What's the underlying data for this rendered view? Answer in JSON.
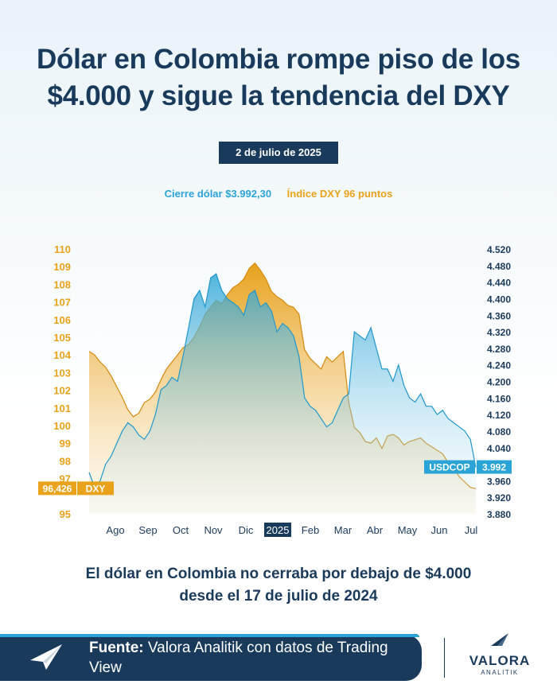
{
  "title_line1": "Dólar en Colombia rompe piso de los",
  "title_line2": "$4.000 y sigue la tendencia del DXY",
  "date": "2 de julio de 2025",
  "legend": {
    "usdcop": "Cierre dólar $3.992,30",
    "dxy": "Índice DXY 96 puntos"
  },
  "colors": {
    "navy": "#1a3a5c",
    "usdcop": "#2aa4d6",
    "dxy": "#e8a21b"
  },
  "chart_data": {
    "type": "area",
    "x_labels": [
      "Ago",
      "Sep",
      "Oct",
      "Nov",
      "Dic",
      "2025",
      "Feb",
      "Mar",
      "Abr",
      "May",
      "Jun",
      "Jul"
    ],
    "y_left": {
      "ticks": [
        110,
        109,
        108,
        107,
        106,
        105,
        104,
        103,
        102,
        101,
        100,
        99,
        98,
        97,
        95
      ],
      "range": [
        95,
        110
      ]
    },
    "y_right": {
      "ticks": [
        "4.520",
        "4.480",
        "4.440",
        "4.400",
        "4.360",
        "4.320",
        "4.280",
        "4.240",
        "4.200",
        "4.160",
        "4.120",
        "4.080",
        "4.040",
        "3.992",
        "3.960",
        "3.920",
        "3.880"
      ],
      "range": [
        3880,
        4520
      ]
    },
    "series": [
      {
        "name": "DXY",
        "axis": "left",
        "last_label": "96,426",
        "values": [
          104.2,
          104.0,
          103.6,
          103.3,
          102.8,
          102.2,
          101.6,
          100.9,
          100.5,
          100.7,
          101.3,
          101.5,
          101.9,
          102.6,
          103.2,
          103.6,
          104.0,
          104.4,
          104.6,
          105.0,
          105.6,
          106.3,
          106.7,
          107.1,
          106.9,
          107.4,
          107.8,
          108.0,
          108.3,
          108.9,
          109.2,
          108.8,
          108.3,
          107.6,
          107.3,
          107.1,
          106.8,
          106.7,
          106.3,
          104.3,
          103.8,
          103.5,
          103.2,
          103.9,
          103.6,
          103.9,
          104.2,
          101.3,
          99.9,
          99.6,
          99.1,
          99.0,
          99.3,
          98.7,
          99.4,
          99.5,
          99.3,
          98.9,
          99.1,
          99.2,
          99.3,
          99.0,
          98.8,
          98.6,
          98.4,
          97.9,
          97.6,
          97.1,
          96.8,
          96.5,
          96.426
        ]
      },
      {
        "name": "USDCOP",
        "axis": "right",
        "last_label": "3.992",
        "values": [
          3980,
          3945,
          3960,
          4000,
          4020,
          4050,
          4080,
          4100,
          4090,
          4070,
          4060,
          4080,
          4120,
          4180,
          4190,
          4210,
          4200,
          4260,
          4330,
          4400,
          4420,
          4380,
          4450,
          4460,
          4420,
          4400,
          4390,
          4380,
          4360,
          4410,
          4420,
          4380,
          4390,
          4370,
          4320,
          4340,
          4330,
          4310,
          4260,
          4160,
          4140,
          4130,
          4110,
          4090,
          4100,
          4130,
          4160,
          4170,
          4320,
          4310,
          4300,
          4330,
          4280,
          4230,
          4230,
          4200,
          4240,
          4190,
          4160,
          4150,
          4170,
          4140,
          4140,
          4120,
          4130,
          4110,
          4100,
          4090,
          4080,
          4060,
          3992.3
        ]
      }
    ]
  },
  "caption_line1": "El dólar en Colombia no cerraba por debajo de $4.000",
  "caption_line2": "desde el 17 de julio de 2024",
  "footer": {
    "source_label": "Fuente:",
    "source_text": "Valora Analitik con datos de Trading View"
  },
  "logo": {
    "word": "VALORA",
    "sub": "ANALITIK"
  }
}
